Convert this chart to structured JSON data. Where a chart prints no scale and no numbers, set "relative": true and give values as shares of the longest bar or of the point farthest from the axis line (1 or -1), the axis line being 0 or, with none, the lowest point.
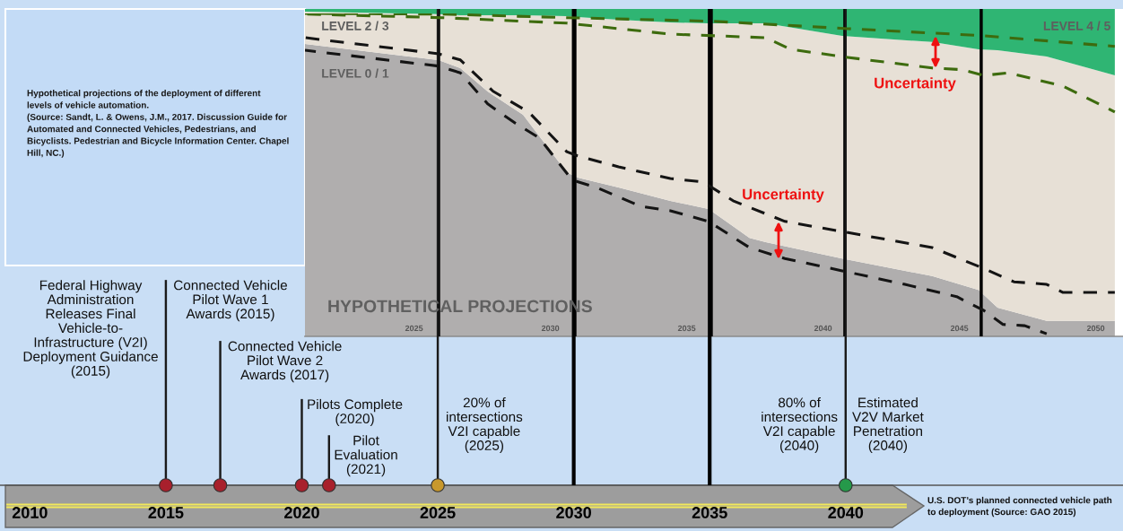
{
  "chart_data": [
    {
      "type": "area",
      "stacked": true,
      "relative": true,
      "x": [
        2021.0,
        2025.9,
        2026.7,
        2027.7,
        2029.0,
        2030.6,
        2031.0,
        2032.5,
        2034.4,
        2035.8,
        2037.3,
        2037.9,
        2040.7,
        2044.0,
        2045.7,
        2046.4,
        2048.2,
        2050.7
      ],
      "series": [
        {
          "name": "LEVEL 0 / 1",
          "color": "#b0aeae",
          "values": [
            0.893,
            0.844,
            0.819,
            0.748,
            0.677,
            0.501,
            0.485,
            0.455,
            0.414,
            0.389,
            0.301,
            0.288,
            0.238,
            0.184,
            0.142,
            0.088,
            0.047,
            0.047
          ]
        },
        {
          "name": "LEVEL 2 / 3",
          "color": "#e7e0d6",
          "values": [
            0.099,
            0.14,
            0.162,
            0.233,
            0.304,
            0.477,
            0.49,
            0.512,
            0.545,
            0.567,
            0.655,
            0.668,
            0.68,
            0.715,
            0.735,
            0.786,
            0.808,
            0.75
          ]
        },
        {
          "name": "LEVEL 4 / 5",
          "color": "#2fb573",
          "values": [
            0.008,
            0.016,
            0.019,
            0.019,
            0.019,
            0.022,
            0.025,
            0.033,
            0.041,
            0.044,
            0.044,
            0.044,
            0.082,
            0.101,
            0.123,
            0.126,
            0.145,
            0.203
          ]
        }
      ],
      "xlim": [
        2021.0,
        2051.0
      ],
      "xticks": [
        2025,
        2030,
        2035,
        2040,
        2045,
        2050
      ],
      "ref_lines": [
        {
          "axis": "x",
          "value": 2025.9,
          "color": "#000000"
        },
        {
          "axis": "x",
          "value": 2030.9,
          "color": "#000000"
        },
        {
          "axis": "x",
          "value": 2035.9,
          "color": "#000000"
        },
        {
          "axis": "x",
          "value": 2040.8,
          "color": "#000000"
        },
        {
          "axis": "x",
          "value": 2045.8,
          "color": "#000000"
        }
      ],
      "annotations": [
        "HYPOTHETICAL PROJECTIONS",
        "Uncertainty",
        "Uncertainty",
        "Hypothetical projections of the deployment of different\nlevels of vehicle automation.\n(Source: Sandt, L. & Owens, J.M., 2017. Discussion Guide for\nAutomated and Connected Vehicles, Pedestrians, and\nBicyclists. Pedestrian and Bicycle Information Center. Chapel\nHill, NC.)"
      ]
    },
    {
      "type": "bar",
      "relative": true,
      "x": [
        2015,
        2017,
        2020,
        2021,
        2025,
        2040
      ],
      "series": [
        {
          "type": "bar",
          "color": "#1a1a1a",
          "values": [
            0.431,
            0.303,
            0.181,
            0.105,
            1,
            1
          ]
        },
        {
          "type": "scatter",
          "colors": [
            "#a8202c",
            "#a8202c",
            "#a8202c",
            "#a8202c",
            "#c8982c",
            "#25994a"
          ],
          "values": [
            0,
            0,
            0,
            0,
            0,
            0
          ]
        }
      ],
      "xlim": [
        2008.9,
        2050.2
      ],
      "xticks": [
        2010,
        2015,
        2020,
        2025,
        2030,
        2035,
        2040
      ],
      "ref_lines": [
        {
          "axis": "x",
          "value": 2030,
          "color": "#000000"
        },
        {
          "axis": "x",
          "value": 2035,
          "color": "#000000"
        }
      ],
      "annotations": [
        {
          "text": "Federal Highway\nAdministration\nReleases Final\nVehicle-to-\nInfrastructure (V2I)\nDeployment Guidance\n(2015)",
          "x": 2015,
          "y": 0.431
        },
        {
          "text": "Connected Vehicle\nPilot Wave 1\nAwards (2015)",
          "x": 2015,
          "y": 0.431
        },
        {
          "text": "Connected Vehicle\nPilot Wave 2\nAwards (2017)",
          "x": 2017,
          "y": 0.303
        },
        {
          "text": "Pilots Complete\n(2020)",
          "x": 2020,
          "y": 0.181
        },
        {
          "text": "Pilot\nEvaluation\n(2021)",
          "x": 2021,
          "y": 0.105
        },
        "20% of\nintersections\nV2I capable\n(2025)",
        "80% of\nintersections\nV2I capable\n(2040)",
        "Estimated\nV2V Market\nPenetration\n(2040)",
        "U.S. DOT’s planned connected vehicle path\nto deployment (Source: GAO 2015)"
      ]
    },
    {
      "type": "line",
      "relative": true,
      "line_style": "dashed",
      "xlim": [
        2021.0,
        2051.0
      ],
      "series": [
        {
          "color": "#141414",
          "x": [
            2021.0,
            2025.9,
            2026.7,
            2027.9,
            2029.2,
            2030.6,
            2031.0,
            2032.5,
            2034.4,
            2035.6,
            2036.7,
            2038.6,
            2040.8,
            2044.0,
            2045.7,
            2047.0,
            2048.2,
            2048.8,
            2050.7
          ],
          "values": [
            0.925,
            0.875,
            0.856,
            0.759,
            0.695,
            0.572,
            0.559,
            0.525,
            0.489,
            0.478,
            0.42,
            0.356,
            0.323,
            0.275,
            0.217,
            0.169,
            0.161,
            0.136,
            0.136
          ]
        },
        {
          "color": "#141414",
          "x": [
            2021.0,
            2025.9,
            2026.7,
            2027.7,
            2028.7,
            2029.6,
            2030.8,
            2031.7,
            2033.3,
            2034.4,
            2035.8,
            2037.3,
            2038.6,
            2040.7,
            2043.0,
            2044.9,
            2045.9,
            2046.6,
            2047.4,
            2048.2
          ],
          "values": [
            0.886,
            0.837,
            0.816,
            0.72,
            0.661,
            0.614,
            0.484,
            0.461,
            0.403,
            0.389,
            0.356,
            0.275,
            0.241,
            0.203,
            0.161,
            0.123,
            0.08,
            0.037,
            0.033,
            0.008
          ]
        },
        {
          "color": "#3d6b0e",
          "x": [
            2021.0,
            2026.0,
            2030.6,
            2035.9,
            2040.9,
            2045.9,
            2050.7
          ],
          "values": [
            1.0,
            0.998,
            0.987,
            0.976,
            0.953,
            0.931,
            0.898
          ]
        },
        {
          "color": "#3d6b0e",
          "x": [
            2021.0,
            2026.0,
            2030.6,
            2034.4,
            2037.9,
            2038.8,
            2040.9,
            2044.0,
            2045.1,
            2045.9,
            2046.8,
            2048.8,
            2050.7
          ],
          "values": [
            0.998,
            0.987,
            0.97,
            0.936,
            0.925,
            0.889,
            0.864,
            0.831,
            0.826,
            0.808,
            0.816,
            0.775,
            0.695
          ]
        }
      ]
    }
  ]
}
